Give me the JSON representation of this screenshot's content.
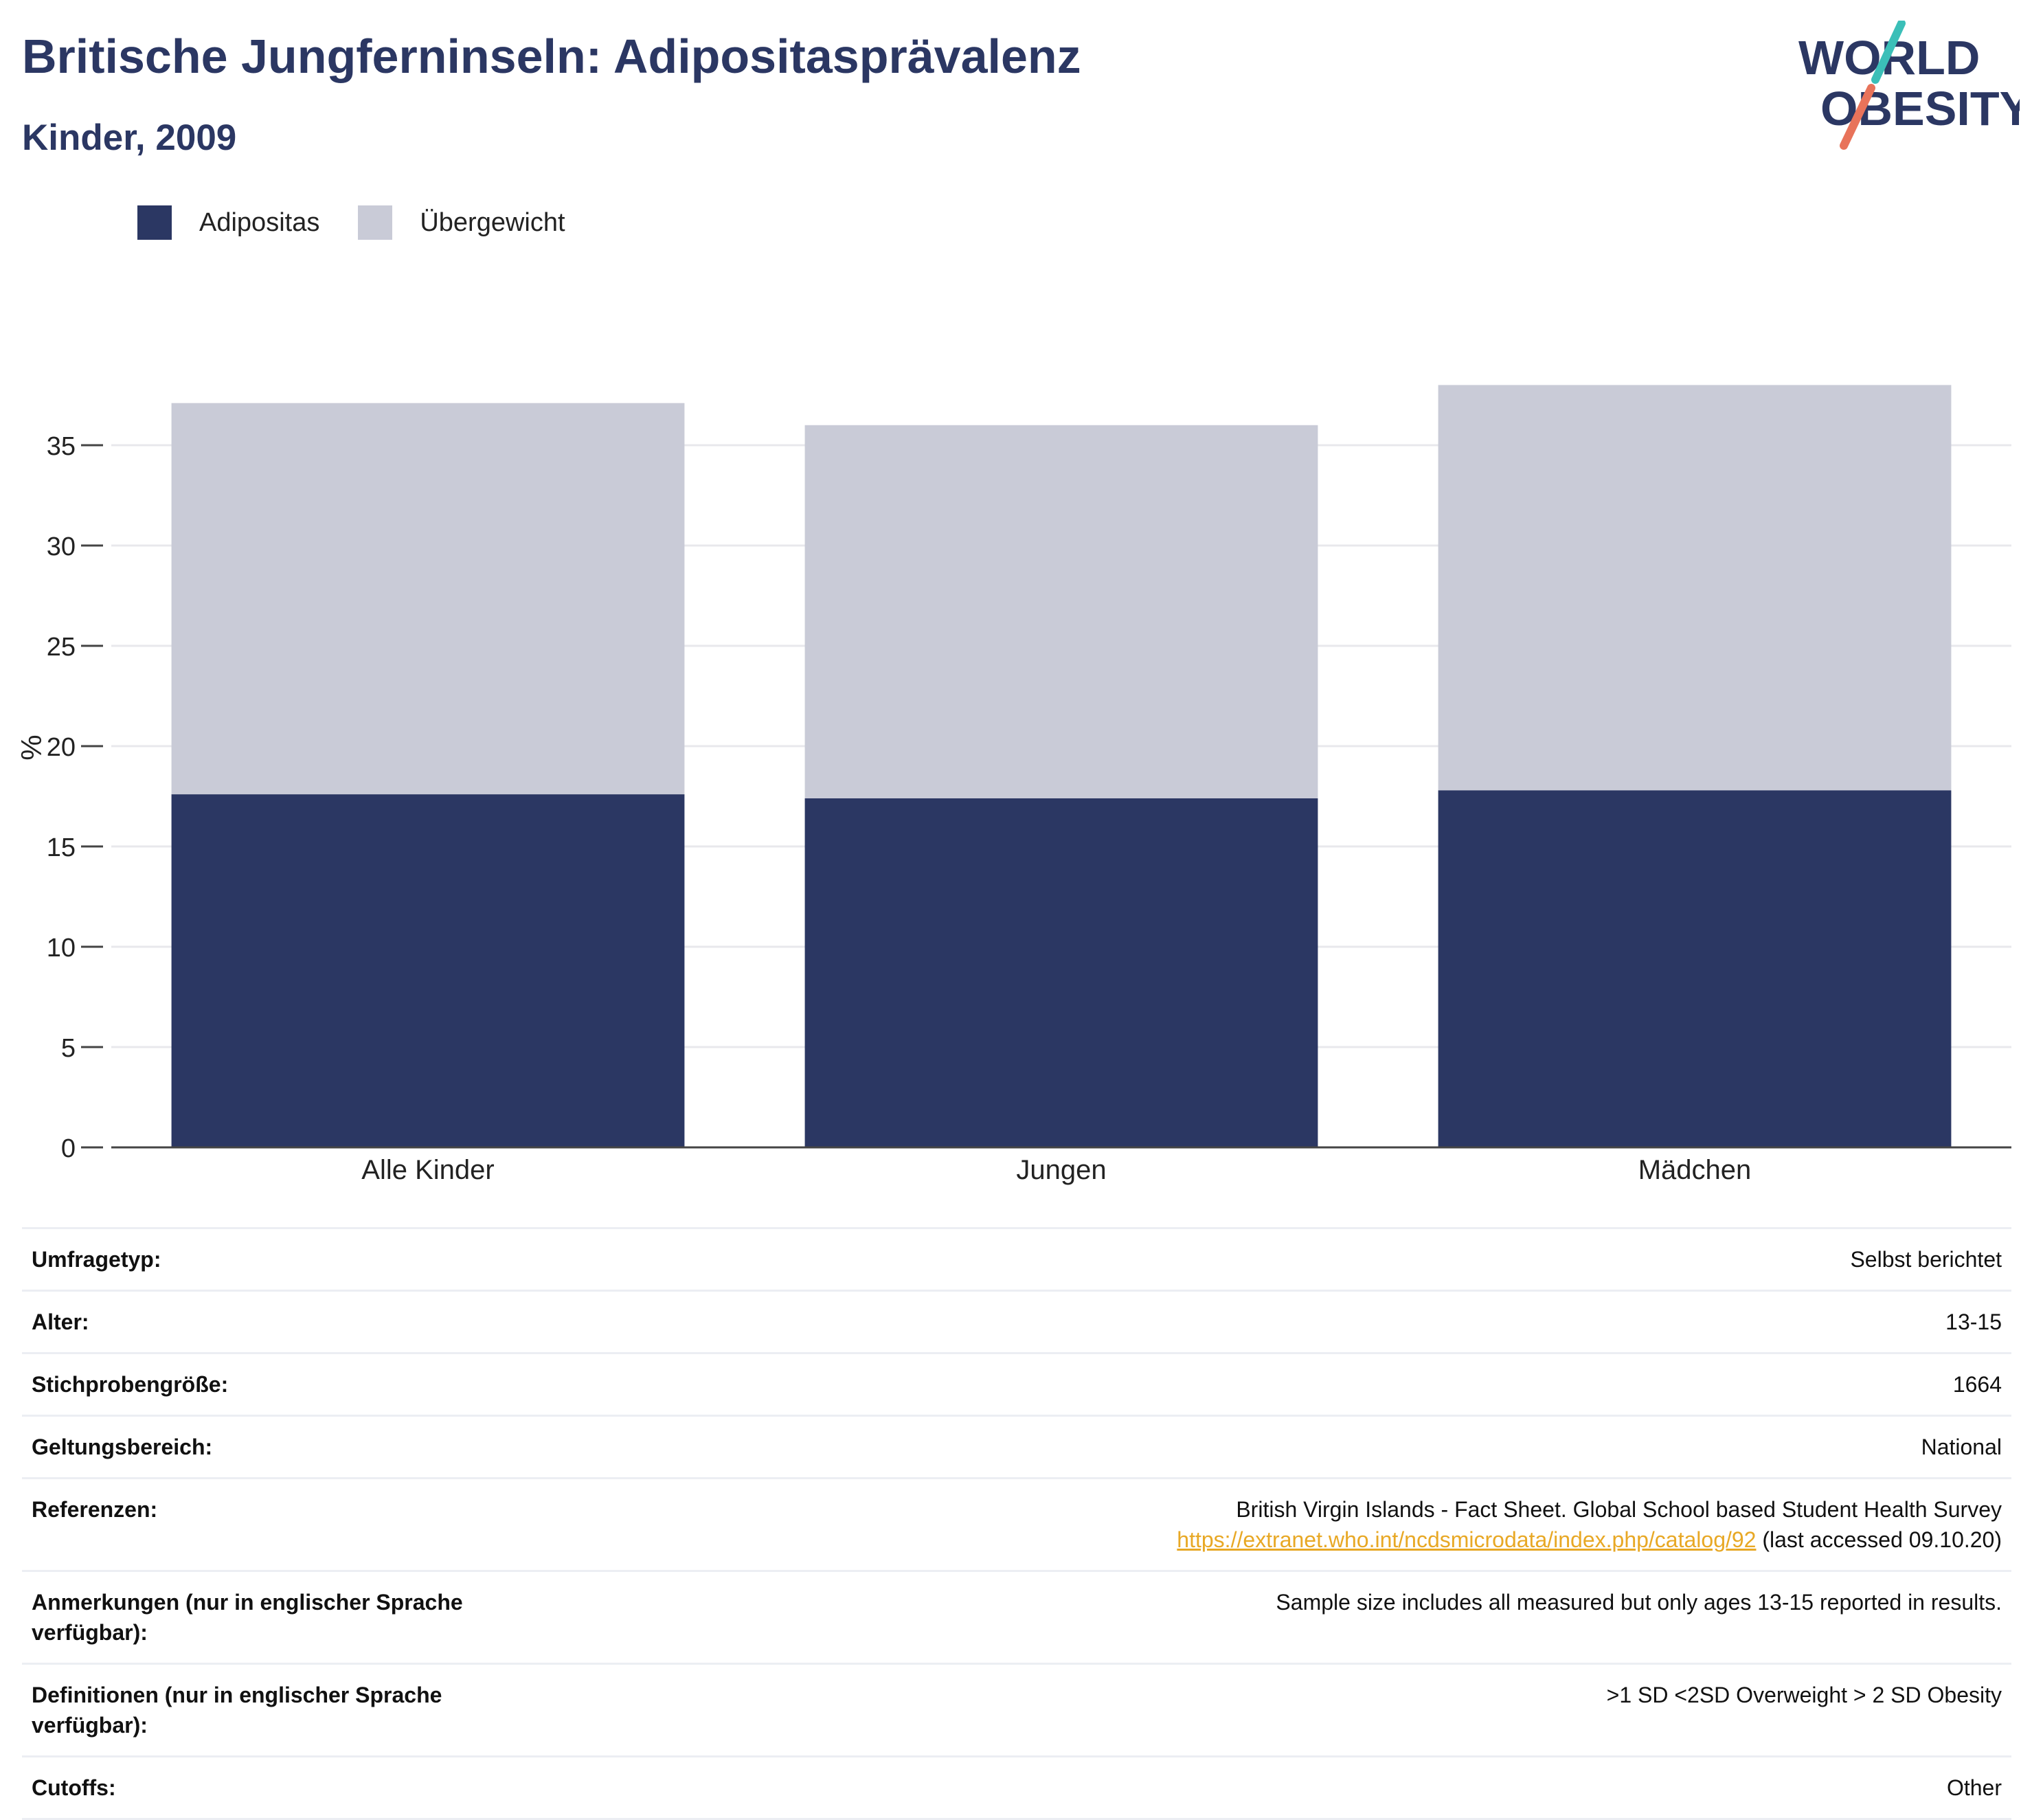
{
  "header": {
    "title": "Britische Jungferninseln: Adipositasprävalenz",
    "subtitle": "Kinder, 2009"
  },
  "logo": {
    "line1": "WORLD",
    "line2": "OBESITY",
    "slash_color_top": "#3bbfb8",
    "slash_color_bottom": "#e8735a",
    "text_color": "#2b3763"
  },
  "colors": {
    "obesity": "#2b3763",
    "overweight": "#c9cbd7",
    "grid": "#e8e8ec",
    "axis": "#444444"
  },
  "legend": {
    "items": [
      {
        "label": "Adipositas",
        "color": "#2b3763"
      },
      {
        "label": "Übergewicht",
        "color": "#c9cbd7"
      }
    ]
  },
  "chart_data": {
    "type": "bar",
    "stacked": true,
    "categories": [
      "Alle Kinder",
      "Jungen",
      "Mädchen"
    ],
    "series": [
      {
        "name": "Adipositas",
        "values": [
          17.6,
          17.4,
          17.8
        ],
        "color": "#2b3763"
      },
      {
        "name": "Übergewicht",
        "values": [
          19.5,
          18.6,
          20.2
        ],
        "color": "#c9cbd7"
      }
    ],
    "ylabel": "%",
    "ylim": [
      0,
      40
    ],
    "yticks": [
      0,
      5,
      10,
      15,
      20,
      25,
      30,
      35
    ],
    "grid": true,
    "legend_position": "top-left"
  },
  "meta": {
    "rows": [
      {
        "label": "Umfragetyp:",
        "value": "Selbst berichtet"
      },
      {
        "label": "Alter:",
        "value": "13-15"
      },
      {
        "label": "Stichprobengröße:",
        "value": "1664"
      },
      {
        "label": "Geltungsbereich:",
        "value": "National"
      },
      {
        "label": "Referenzen:",
        "value": "British Virgin Islands - Fact Sheet. Global School based Student Health Survey",
        "link": "https://extranet.who.int/ncdsmicrodata/index.php/catalog/92",
        "suffix": " (last accessed 09.10.20)"
      },
      {
        "label": "Anmerkungen (nur in englischer Sprache verfügbar):",
        "value": "Sample size includes all measured but only ages 13-15 reported in results."
      },
      {
        "label": "Definitionen (nur in englischer Sprache verfügbar):",
        "value": ">1 SD <2SD Overweight > 2 SD Obesity"
      },
      {
        "label": "Cutoffs:",
        "value": "Other"
      }
    ]
  }
}
